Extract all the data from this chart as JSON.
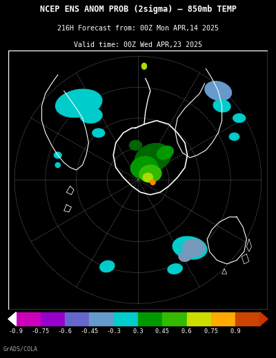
{
  "title_line1": "NCEP ENS ANOM PROB (2sigma) – 850mb TEMP",
  "title_line2": "216H Forecast from: 00Z Mon APR,14 2025",
  "title_line3": "Valid time: 00Z Wed APR,23 2025",
  "colorbar_box_colors": [
    "#cc00bb",
    "#9900cc",
    "#6666cc",
    "#6699cc",
    "#00cccc",
    "#009900",
    "#33bb00",
    "#ccdd00",
    "#ffaa00",
    "#cc4400"
  ],
  "colorbar_values": [
    "-0.9",
    "-0.75",
    "-0.6",
    "-0.45",
    "-0.3",
    "0.3",
    "0.45",
    "0.6",
    "0.75",
    "0.9"
  ],
  "background_color": "#000000",
  "map_bg_color": "#000000",
  "box_border_color": "#ffffff",
  "grid_color": "#555555",
  "title_color": "#ffffff",
  "grads_text": "GrADS/COLA",
  "fig_width": 4.0,
  "fig_height": 5.18,
  "dpi": 100
}
